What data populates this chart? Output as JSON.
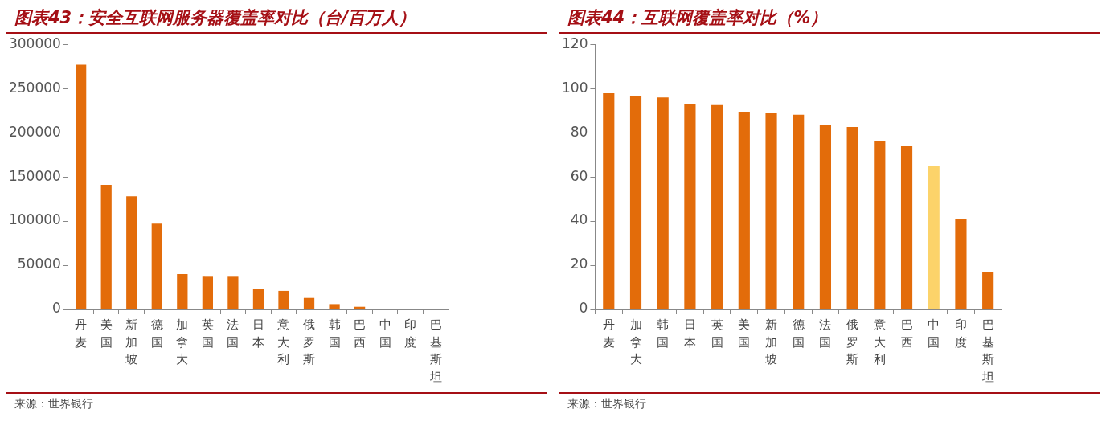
{
  "chart_data": [
    {
      "type": "bar",
      "title": "图表43：安全互联网服务器覆盖率对比（台/百万人）",
      "categories": [
        "丹麦",
        "美国",
        "新加坡",
        "德国",
        "加拿大",
        "英国",
        "法国",
        "日本",
        "意大利",
        "俄罗斯",
        "韩国",
        "巴西",
        "中国",
        "印度",
        "巴基斯坦"
      ],
      "values": [
        277000,
        141000,
        128000,
        97000,
        40000,
        37000,
        37000,
        23000,
        21000,
        13000,
        6000,
        3000,
        null,
        null,
        null
      ],
      "color": "#e36c0a",
      "ylim": [
        0,
        300000
      ],
      "yticks": [
        0,
        50000,
        100000,
        150000,
        200000,
        250000,
        300000
      ],
      "legend": false,
      "annotations": [
        "来源：世界银行"
      ]
    },
    {
      "type": "bar",
      "title": "图表44：互联网覆盖率对比（%）",
      "categories": [
        "丹麦",
        "加拿大",
        "韩国",
        "日本",
        "英国",
        "美国",
        "新加坡",
        "德国",
        "法国",
        "俄罗斯",
        "意大利",
        "巴西",
        "中国",
        "印度",
        "巴基斯坦"
      ],
      "values": [
        97.9,
        96.7,
        96,
        92.9,
        92.5,
        89.5,
        89,
        88.1,
        83.3,
        82.6,
        76.1,
        73.9,
        65.1,
        40.8,
        17.1
      ],
      "colors": [
        "#e36c0a",
        "#e36c0a",
        "#e36c0a",
        "#e36c0a",
        "#e36c0a",
        "#e36c0a",
        "#e36c0a",
        "#e36c0a",
        "#e36c0a",
        "#e36c0a",
        "#e36c0a",
        "#e36c0a",
        "#fcd36a",
        "#e36c0a",
        "#e36c0a"
      ],
      "ylim": [
        0,
        120
      ],
      "yticks": [
        0,
        20,
        40,
        60,
        80,
        100,
        120
      ],
      "legend": false,
      "annotations": [
        "来源：世界银行"
      ]
    }
  ]
}
